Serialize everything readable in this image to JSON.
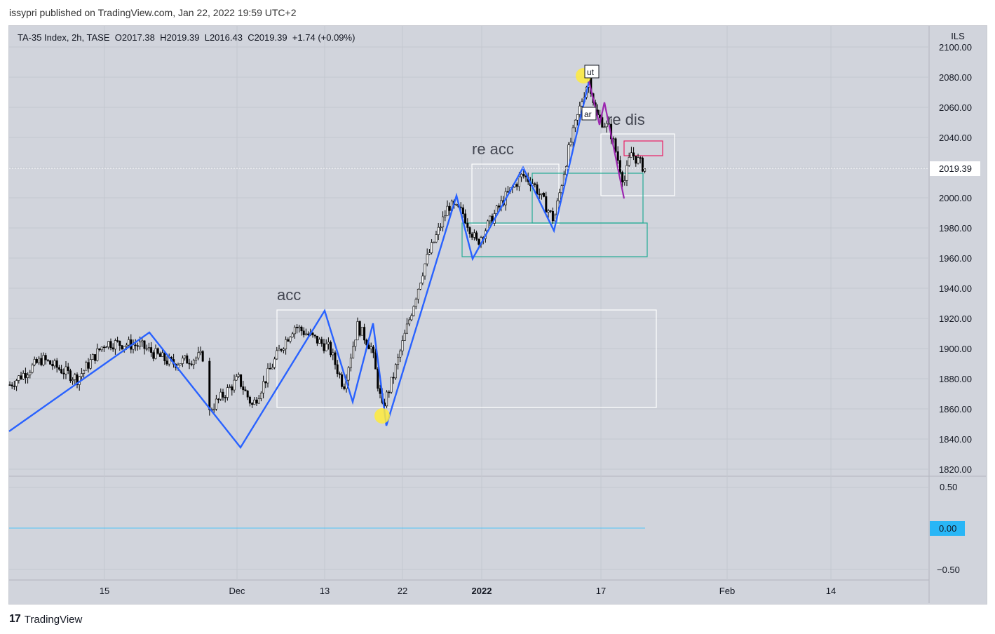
{
  "header": {
    "published_text": "issypri published on TradingView.com, Jan 22, 2022 19:59 UTC+2"
  },
  "legend": {
    "symbol": "TA-35 Index, 2h, TASE",
    "open": "O2017.38",
    "high": "H2019.39",
    "low": "L2016.43",
    "close": "C2019.39",
    "change": "+1.74 (+0.09%)"
  },
  "price_axis": {
    "currency": "ILS",
    "ticks": [
      "2100.00",
      "2080.00",
      "2060.00",
      "2040.00",
      "2020.00",
      "2000.00",
      "1980.00",
      "1960.00",
      "1940.00",
      "1920.00",
      "1900.00",
      "1880.00",
      "1860.00",
      "1840.00",
      "1820.00"
    ],
    "last_price_label": "2019.39"
  },
  "indicator_axis": {
    "ticks": [
      "0.50",
      "0.00",
      "−0.50"
    ],
    "current_value_label": "0.00"
  },
  "time_axis": {
    "ticks": [
      "15",
      "Dec",
      "13",
      "22",
      "2022",
      "17",
      "Feb",
      "14"
    ]
  },
  "annotations": {
    "acc": "acc",
    "re_acc": "re acc",
    "re_dis": "re dis",
    "ut": "ut",
    "ar": "ar"
  },
  "footer": {
    "brand": "TradingView",
    "logo": "17"
  },
  "colors": {
    "background": "#d1d4dc",
    "zigzag": "#2962ff",
    "zigzag_dis": "#9c27b0",
    "box_white": "#ffffff",
    "box_teal": "#22ab94",
    "box_pink": "#e91e63",
    "highlight": "#ffeb3b",
    "zero_line": "#4fc3f7",
    "last_price_bg": "#ffffff",
    "indicator_label_bg": "#29b6f6"
  },
  "chart_data": {
    "type": "line",
    "title": "TA-35 Index, 2h, TASE",
    "ylim": [
      1820,
      2100
    ],
    "x_ticks": [
      "15",
      "Dec",
      "13",
      "22",
      "2022",
      "17",
      "Feb",
      "14"
    ],
    "series": [
      {
        "name": "",
        "x_ticks_index": [
          -0.81,
          0.4,
          1.88,
          2.69,
          3.93,
          4.34,
          4.57,
          5.77,
          6.83,
          8.41,
          9.8,
          10.3,
          12.15,
          12.52,
          14.36
        ],
        "values": [
          1845,
          1909,
          1911,
          1834,
          1925,
          1866,
          1917,
          1850,
          2002,
          1960,
          2020,
          1978,
          2058,
          2072,
          2000
        ]
      }
    ],
    "candles_approx": {
      "note_values": [
        1875,
        1890,
        1905,
        1895,
        1880,
        1890,
        1915,
        1910,
        1880,
        1860,
        1950,
        1970,
        1995,
        1980,
        2000,
        2010,
        1995,
        1990,
        2050,
        2075,
        2055,
        2030,
        2010,
        2019.39
      ]
    }
  }
}
